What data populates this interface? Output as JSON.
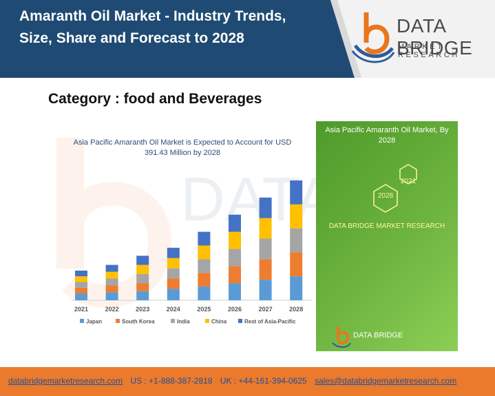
{
  "header": {
    "title": "Amaranth Oil Market - Industry Trends, Size, Share and Forecast to 2028",
    "logo_name": "DATA BRIDGE",
    "logo_tagline": "MARKET RESEARCH",
    "colors": {
      "band": "#1f4a73",
      "logo_orange": "#e8761e",
      "logo_blue": "#2e5c9a"
    }
  },
  "category": "Category : food and Beverages",
  "chart_data": {
    "type": "bar",
    "stacked": true,
    "title": "Asia Pacific Amaranth Oil Market is Expected to Account for USD 391.43 Million by 2028",
    "categories": [
      "2021",
      "2022",
      "2023",
      "2024",
      "2025",
      "2026",
      "2027",
      "2028"
    ],
    "series": [
      {
        "name": "Japan",
        "color": "#5b9bd5",
        "values": [
          6,
          7,
          8,
          10,
          12,
          15,
          18,
          21
        ]
      },
      {
        "name": "South Korea",
        "color": "#ed7d31",
        "values": [
          5,
          6,
          7,
          9,
          12,
          15,
          18,
          21
        ]
      },
      {
        "name": "India",
        "color": "#a5a5a5",
        "values": [
          5,
          6,
          8,
          9,
          12,
          15,
          18,
          21
        ]
      },
      {
        "name": "China",
        "color": "#ffc000",
        "values": [
          5,
          6,
          8,
          9,
          12,
          15,
          18,
          21
        ]
      },
      {
        "name": "Rest of Asia-Pacific",
        "color": "#4472c4",
        "values": [
          5,
          6,
          8,
          9,
          12,
          15,
          18,
          21
        ]
      }
    ],
    "legend": "bottom",
    "grid": false
  },
  "side_panel": {
    "title": "Asia Pacific Amaranth Oil Market, By 2028",
    "year_a": "2021",
    "year_b": "2028",
    "company": "DATA BRIDGE MARKET RESEARCH",
    "logo_name": "DATA BRIDGE",
    "color": "#6db33f"
  },
  "footer": {
    "website": "databridgemarketresearch.com",
    "us_phone": "US : +1-888-387-2818",
    "uk_phone": "UK : +44-161-394-0625",
    "email": "sales@databridgemarketresearch.com",
    "color": "#ec7a2c"
  }
}
